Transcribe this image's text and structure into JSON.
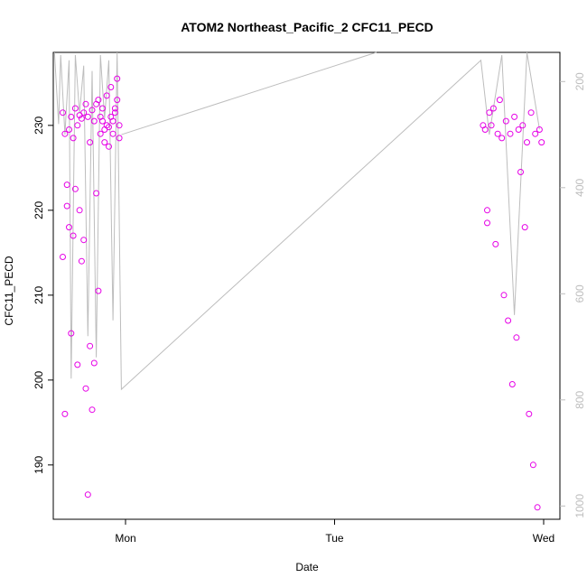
{
  "chart_data": {
    "type": "scatter",
    "title": "ATOM2 Northeast_Pacific_2 CFC11_PECD",
    "xlabel": "Date",
    "ylabel": "CFC11_PECD",
    "x_ticks": [
      "Mon",
      "Tue",
      "Wed"
    ],
    "x_range_days": [
      0,
      2
    ],
    "ylim": [
      183.6,
      238.6
    ],
    "y_ticks": [
      190,
      200,
      210,
      220,
      230
    ],
    "y2_ticks": [
      200,
      400,
      600,
      800,
      1000
    ],
    "y2lim_pressure": [
      1025,
      145
    ],
    "colors": {
      "points": "#e600e6",
      "profile_line": "#bdbdbd",
      "right_axis": "#bdbdbd"
    },
    "series": [
      {
        "name": "CFC11_PECD",
        "x": [
          -0.3,
          -0.3,
          -0.29,
          -0.29,
          -0.28,
          -0.28,
          -0.27,
          -0.27,
          -0.26,
          -0.26,
          -0.25,
          -0.25,
          -0.24,
          -0.24,
          -0.23,
          -0.23,
          -0.22,
          -0.22,
          -0.21,
          -0.21,
          -0.2,
          -0.2,
          -0.19,
          -0.19,
          -0.18,
          -0.18,
          -0.17,
          -0.17,
          -0.16,
          -0.16,
          -0.15,
          -0.15,
          -0.14,
          -0.14,
          -0.13,
          -0.13,
          -0.12,
          -0.12,
          -0.11,
          -0.11,
          -0.1,
          -0.1,
          -0.09,
          -0.09,
          -0.08,
          -0.08,
          -0.07,
          -0.07,
          -0.06,
          -0.06,
          -0.05,
          -0.05,
          -0.04,
          -0.04,
          -0.03,
          -0.03,
          1.71,
          1.72,
          1.73,
          1.73,
          1.74,
          1.75,
          1.76,
          1.77,
          1.78,
          1.79,
          1.8,
          1.81,
          1.82,
          1.83,
          1.84,
          1.85,
          1.86,
          1.87,
          1.88,
          1.89,
          1.9,
          1.91,
          1.92,
          1.93,
          1.94,
          1.95,
          1.96,
          1.97,
          1.98,
          1.99
        ],
        "y": [
          231.5,
          214.5,
          196.0,
          229.0,
          220.5,
          223.0,
          229.5,
          218.0,
          231.0,
          205.5,
          228.5,
          217.0,
          222.5,
          232.0,
          230.0,
          201.8,
          231.2,
          220.0,
          230.8,
          214.0,
          231.5,
          216.5,
          232.5,
          199.0,
          231.0,
          186.5,
          228.0,
          204.0,
          231.8,
          196.5,
          230.5,
          202.0,
          232.5,
          222.0,
          233.0,
          210.5,
          231.0,
          229.0,
          230.5,
          232.0,
          229.5,
          228.0,
          230.0,
          233.5,
          229.8,
          227.5,
          231.0,
          234.5,
          230.5,
          229.0,
          231.5,
          232.0,
          233.0,
          235.5,
          230.0,
          228.5,
          230.0,
          229.5,
          220.0,
          218.5,
          231.5,
          230.0,
          232.0,
          216.0,
          229.0,
          233.0,
          228.5,
          210.0,
          230.5,
          207.0,
          229.0,
          199.5,
          231.0,
          205.0,
          229.5,
          224.5,
          230.0,
          218.0,
          228.0,
          196.0,
          231.5,
          190.0,
          229.0,
          185.0,
          229.5,
          228.0
        ],
        "line_profile_pressure": [
          145,
          280,
          150,
          300,
          160,
          760,
          150,
          260,
          170,
          680,
          180,
          720,
          150,
          270,
          160,
          650,
          145,
          780,
          160,
          300,
          150,
          640,
          145,
          290
        ]
      }
    ]
  }
}
